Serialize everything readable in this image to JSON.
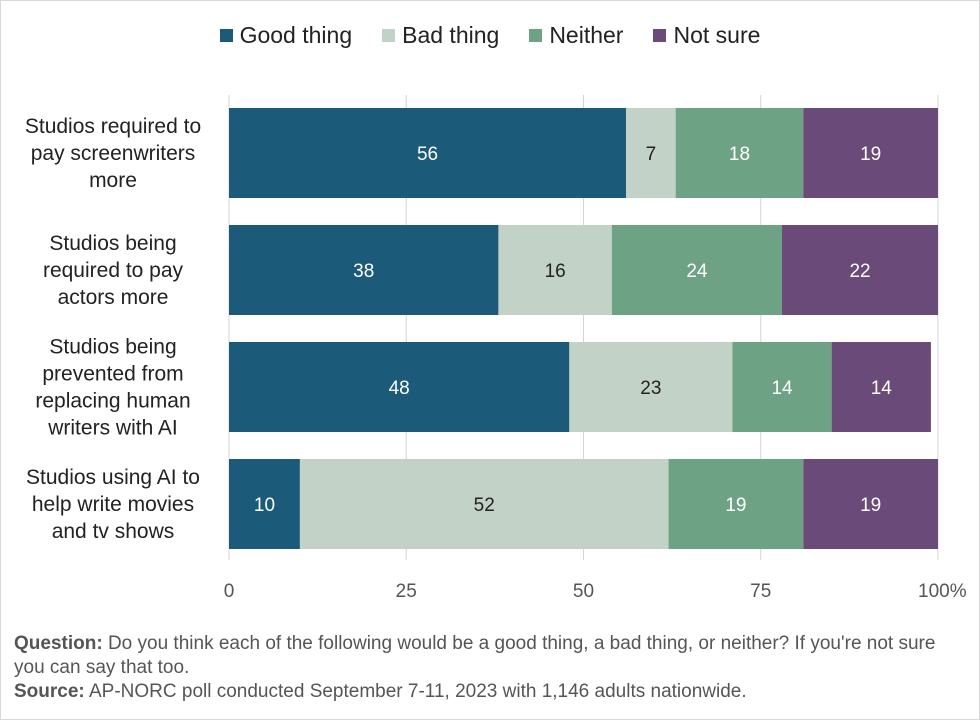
{
  "chart_data": {
    "type": "bar",
    "orientation": "horizontal",
    "stacked": true,
    "categories": [
      [
        "Studios required to",
        "pay screenwriters",
        "more"
      ],
      [
        "Studios being",
        "required to pay",
        "actors more"
      ],
      [
        "Studios being",
        "prevented from",
        "replacing human",
        "writers with AI"
      ],
      [
        "Studios using AI to",
        "help write movies",
        "and tv shows"
      ]
    ],
    "series": [
      {
        "name": "Good thing",
        "color": "#1b5a78",
        "label_color": "#ffffff",
        "values": [
          56,
          38,
          48,
          10
        ]
      },
      {
        "name": "Bad thing",
        "color": "#c2d2c6",
        "label_color": "#222222",
        "values": [
          7,
          16,
          23,
          52
        ]
      },
      {
        "name": "Neither",
        "color": "#6da384",
        "label_color": "#ffffff",
        "values": [
          18,
          24,
          14,
          19
        ]
      },
      {
        "name": "Not sure",
        "color": "#6a4a78",
        "label_color": "#ffffff",
        "values": [
          19,
          22,
          14,
          19
        ]
      }
    ],
    "xlim": [
      0,
      100
    ],
    "xticks": [
      "0",
      "25",
      "50",
      "75",
      "100%"
    ],
    "grid": "vertical",
    "legend_position": "top-center"
  },
  "footnote": {
    "question_label": "Question:",
    "question_text": " Do you think each of the following would be a good thing, a bad thing, or neither? If you're not sure you can say that too.",
    "source_label": "Source:",
    "source_text": " AP-NORC poll conducted September 7-11, 2023 with 1,146 adults nationwide."
  }
}
